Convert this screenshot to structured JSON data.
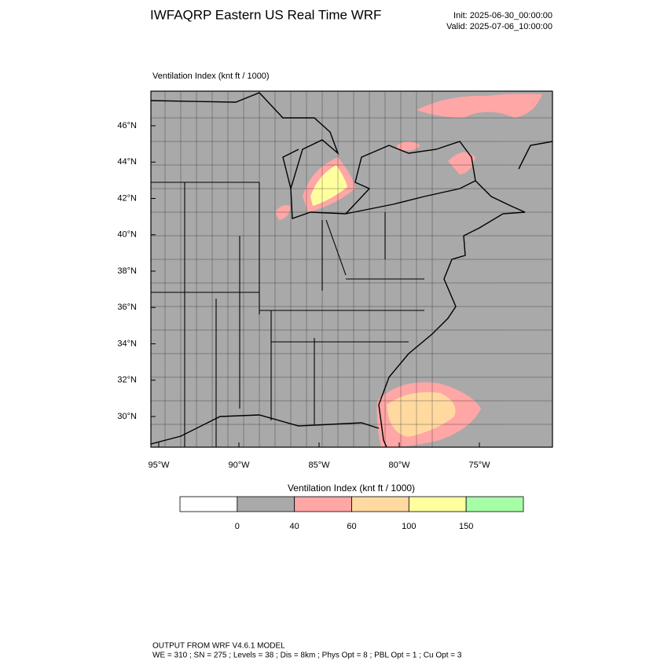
{
  "header": {
    "title": "IWFAQRP Eastern US Real Time WRF",
    "init": "Init: 2025-06-30_00:00:00",
    "valid": "Valid: 2025-07-06_10:00:00"
  },
  "map": {
    "field_label": "Ventilation Index   (knt ft / 1000)",
    "lat_labels": [
      "46°N",
      "44°N",
      "42°N",
      "40°N",
      "38°N",
      "36°N",
      "34°N",
      "32°N",
      "30°N"
    ],
    "lon_labels": [
      "95°W",
      "90°W",
      "85°W",
      "80°W",
      "75°W"
    ]
  },
  "colorbar": {
    "title": "Ventilation Index  (knt ft / 1000)",
    "levels": [
      0,
      40,
      60,
      100,
      150
    ],
    "colors": [
      "#ffffff",
      "#a9a9a9",
      "#ffa6a6",
      "#ffd9a0",
      "#ffff9f",
      "#a6ffa6"
    ]
  },
  "footer": {
    "line1": "OUTPUT FROM WRF V4.6.1 MODEL",
    "line2": "WE = 310 ; SN = 275 ; Levels = 38 ; Dis = 8km ; Phys Opt = 8 ; PBL Opt = 1 ; Cu Opt = 3"
  }
}
